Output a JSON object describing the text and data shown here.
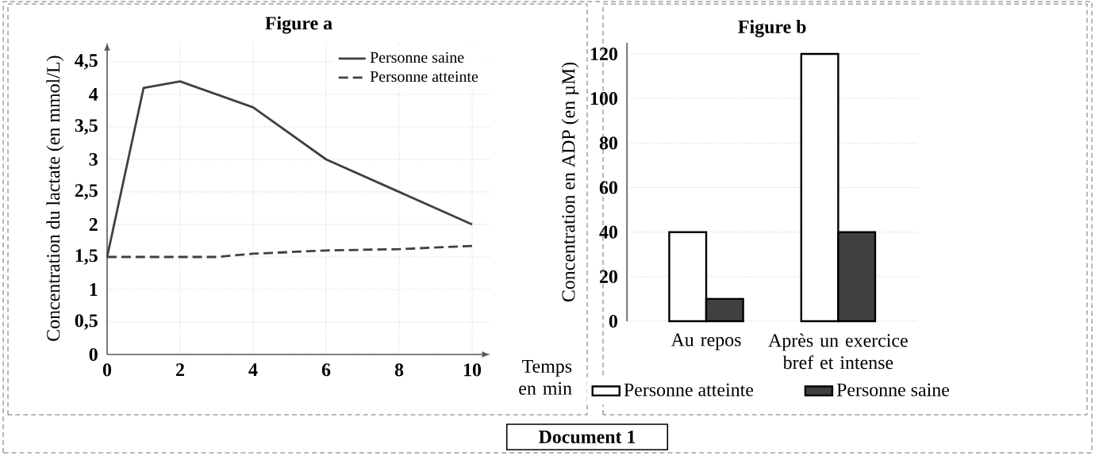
{
  "chart_data": [
    {
      "type": "line",
      "title": "Figure a",
      "xlabel": "Temps en min",
      "ylabel": "Concentration du lactate  (en mmol/L)",
      "xlim": [
        0,
        10.5
      ],
      "ylim": [
        0,
        4.8
      ],
      "xticks": [
        0,
        2,
        4,
        6,
        8,
        10
      ],
      "yticks": [
        0,
        {
          "value": 0.5,
          "label": "0,5"
        },
        1,
        {
          "value": 1.5,
          "label": "1,5"
        },
        2,
        {
          "value": 2.5,
          "label": "2,5"
        },
        3,
        {
          "value": 3.5,
          "label": "3,5"
        },
        4,
        {
          "value": 4.5,
          "label": "4,5"
        }
      ],
      "grid": true,
      "legend": "top right",
      "marker": "none",
      "series": [
        {
          "name": "Personne saine",
          "color": "#404040",
          "line_style": "solid",
          "x": [
            0,
            1,
            2,
            4,
            6,
            10
          ],
          "values": [
            1.5,
            4.1,
            4.2,
            3.8,
            3.0,
            2.0
          ]
        },
        {
          "name": "Personne atteinte",
          "color": "#404040",
          "line_style": "dashed",
          "x": [
            0,
            2,
            3,
            4,
            6,
            8,
            10
          ],
          "values": [
            1.5,
            1.5,
            1.5,
            1.55,
            1.6,
            1.62,
            1.67
          ]
        }
      ],
      "annotations": [
        "Document 1"
      ]
    },
    {
      "type": "bar",
      "title": "Figure b",
      "ylabel": "Concentration en ADP (en µM)",
      "categories": [
        "Au repos",
        "Après un exercice bref et intense"
      ],
      "ylim": [
        0,
        125
      ],
      "yticks": [
        0,
        20,
        40,
        60,
        80,
        100,
        120
      ],
      "grid": "y",
      "legend": "bottom",
      "series": [
        {
          "name": "Personne atteinte",
          "color": "#ffffff",
          "values": [
            40,
            120
          ]
        },
        {
          "name": "Personne saine",
          "color": "#404040",
          "values": [
            10,
            40
          ]
        }
      ]
    }
  ]
}
